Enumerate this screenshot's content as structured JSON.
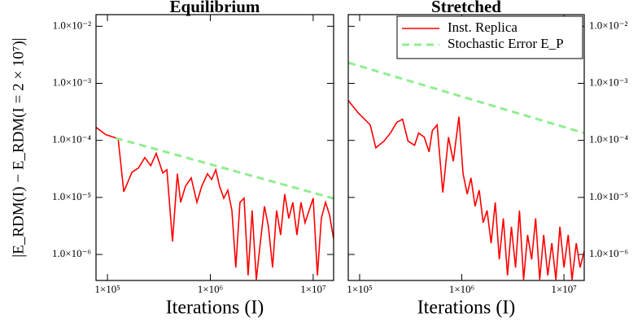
{
  "chart_data": [
    {
      "type": "line",
      "title": "Equilibrium",
      "xlabel": "Iterations (I)",
      "ylabel": "|E_RDM(I) − E_RDM(I = 2 × 10⁷)|",
      "xscale": "log",
      "yscale": "log",
      "yaxis_side": "left",
      "xlim": [
        77400,
        15800000
      ],
      "ylim": [
        3.5e-07,
        0.016
      ],
      "xticks": [
        {
          "value": 100000,
          "label": "1×10⁵"
        },
        {
          "value": 1000000,
          "label": "1×10⁶"
        },
        {
          "value": 10000000,
          "label": "1×10⁷"
        }
      ],
      "yticks": [
        {
          "value": 1e-06,
          "label": "1.0×10⁻⁶"
        },
        {
          "value": 1e-05,
          "label": "1.0×10⁻⁵"
        },
        {
          "value": 0.0001,
          "label": "1.0×10⁻⁴"
        },
        {
          "value": 0.001,
          "label": "1.0×10⁻³"
        },
        {
          "value": 0.01,
          "label": "1.0×10⁻²"
        }
      ],
      "series": [
        {
          "color": "#ff0000",
          "style": "solid",
          "x": [
            77400,
            96400,
            127000,
            144000,
            173000,
            200000,
            231000,
            263000,
            298000,
            345000,
            378000,
            429000,
            478000,
            515000,
            574000,
            652000,
            741000,
            826000,
            938000,
            1030000,
            1130000,
            1230000,
            1350000,
            1480000,
            1620000,
            1770000,
            1940000,
            2130000,
            2330000,
            2550000,
            2800000,
            3060000,
            3360000,
            3670000,
            4030000,
            4410000,
            4830000,
            5290000,
            5790000,
            6340000,
            6950000,
            7610000,
            8340000,
            9130000,
            10000000,
            11000000,
            12000000,
            13200000,
            14400000,
            15800000
          ],
          "values": [
            0.000169,
            0.000126,
            0.000107,
            1.26e-05,
            2.77e-05,
            3.27e-05,
            5e-05,
            3.6e-05,
            5.9e-05,
            2.68e-05,
            3.06e-05,
            1.69e-06,
            2.6e-05,
            8.2e-06,
            1.58e-05,
            2.2e-05,
            8.2e-06,
            1.58e-05,
            2.6e-05,
            2.06e-05,
            3.06e-05,
            1.58e-05,
            9.7e-06,
            1.34e-05,
            5.9e-06,
            5.9e-07,
            8.2e-06,
            9.7e-06,
            4.3e-07,
            5.9e-06,
            3.6e-07,
            1.58e-06,
            7e-06,
            3.06e-06,
            5.9e-07,
            5.9e-06,
            2.2e-06,
            1.14e-05,
            4.3e-06,
            8.2e-06,
            2.2e-06,
            8.2e-06,
            3.6e-06,
            5.9e-06,
            9.7e-06,
            4.3e-07,
            4.3e-06,
            8.2e-06,
            5e-06,
            1.87e-06
          ]
        },
        {
          "color": "#90ee90",
          "style": "dashed",
          "x": [
            120000,
            15800000
          ],
          "values": [
            0.00011,
            9.6e-06
          ]
        }
      ]
    },
    {
      "type": "line",
      "title": "Stretched",
      "xlabel": "Iterations (I)",
      "xscale": "log",
      "yscale": "log",
      "yaxis_side": "right",
      "legend": "upper right",
      "xlim": [
        77400,
        15800000
      ],
      "ylim": [
        3.5e-07,
        0.016
      ],
      "xticks": [
        {
          "value": 100000,
          "label": "1×10⁵"
        },
        {
          "value": 1000000,
          "label": "1×10⁶"
        },
        {
          "value": 10000000,
          "label": "1×10⁷"
        }
      ],
      "yticks": [
        {
          "value": 1e-06,
          "label": "1.0×10⁻⁶"
        },
        {
          "value": 1e-05,
          "label": "1.0×10⁻⁵"
        },
        {
          "value": 0.0001,
          "label": "1.0×10⁻⁴"
        },
        {
          "value": 0.001,
          "label": "1.0×10⁻³"
        },
        {
          "value": 0.01,
          "label": "1.0×10⁻²"
        }
      ],
      "series": [
        {
          "name": "Inst. Replica",
          "color": "#ff0000",
          "style": "solid",
          "x": [
            77400,
            96400,
            127000,
            144000,
            173000,
            200000,
            231000,
            263000,
            298000,
            345000,
            378000,
            429000,
            478000,
            515000,
            574000,
            652000,
            741000,
            826000,
            938000,
            1030000,
            1130000,
            1230000,
            1350000,
            1480000,
            1620000,
            1770000,
            1940000,
            2130000,
            2330000,
            2550000,
            2800000,
            3060000,
            3360000,
            3670000,
            4030000,
            4410000,
            4830000,
            5290000,
            5790000,
            6340000,
            6950000,
            7610000,
            8340000,
            9130000,
            10000000,
            11000000,
            12000000,
            13200000,
            14400000,
            15800000
          ],
          "values": [
            0.0005,
            0.000306,
            0.000187,
            7.4e-05,
            9.7e-05,
            0.000134,
            0.000206,
            0.000235,
            9.7e-05,
            8.2e-05,
            0.000134,
            0.000114,
            6.3e-05,
            0.000148,
            0.000187,
            1.22e-05,
            0.000114,
            4.3e-05,
            0.00026,
            2.6e-05,
            1.14e-05,
            2.2e-05,
            7e-06,
            1.34e-05,
            3.6e-06,
            5.9e-06,
            1.58e-06,
            8.2e-06,
            8.2e-07,
            4.3e-06,
            4.3e-07,
            3.06e-06,
            5.9e-07,
            5.9e-06,
            3.6e-07,
            2.2e-06,
            8.2e-07,
            4.3e-06,
            3.6e-07,
            2.2e-06,
            4.3e-07,
            1.58e-06,
            3.6e-07,
            3.06e-06,
            5.9e-07,
            2.2e-06,
            3.6e-07,
            1.58e-06,
            5.9e-07,
            1.14e-06
          ]
        },
        {
          "name": "Stochastic Error E_P",
          "color": "#90ee90",
          "style": "dashed",
          "x": [
            77400,
            15800000
          ],
          "values": [
            0.0023,
            0.000134
          ]
        }
      ]
    }
  ]
}
